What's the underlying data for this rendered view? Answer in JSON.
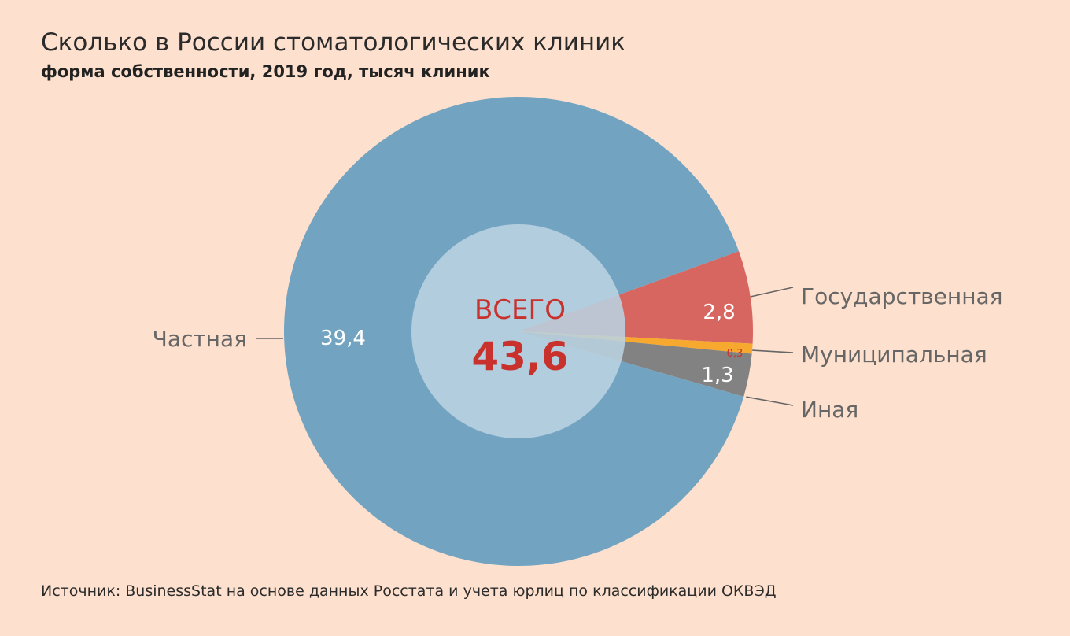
{
  "colors": {
    "background": "#fde0cd",
    "private": "#72a4c2",
    "state": "#d86660",
    "municipal": "#f6a82f",
    "other": "#828282",
    "center_fill": "#bad3e1",
    "accent_red": "#c9312d",
    "leader_line": "#666666"
  },
  "chart_data": {
    "type": "pie",
    "title": "Сколько в России стоматологических клиник",
    "subtitle": "форма собственности, 2019 год, тысяч клиник",
    "source": "Источник: BusinessStat на основе данных Росстата и учета юрлиц по классификации ОКВЭД",
    "center": {
      "label": "ВСЕГО",
      "total": 43.6,
      "total_text": "43,6"
    },
    "slices": [
      {
        "key": "state",
        "name": "Государственная",
        "value": 2.8,
        "value_text": "2,8",
        "color": "#d86660"
      },
      {
        "key": "municipal",
        "name": "Муниципальная",
        "value": 0.3,
        "value_text": "0,3",
        "color": "#f6a82f"
      },
      {
        "key": "other",
        "name": "Иная",
        "value": 1.3,
        "value_text": "1,3",
        "color": "#828282"
      },
      {
        "key": "private",
        "name": "Частная",
        "value": 39.4,
        "value_text": "39,4",
        "color": "#72a4c2"
      }
    ]
  }
}
